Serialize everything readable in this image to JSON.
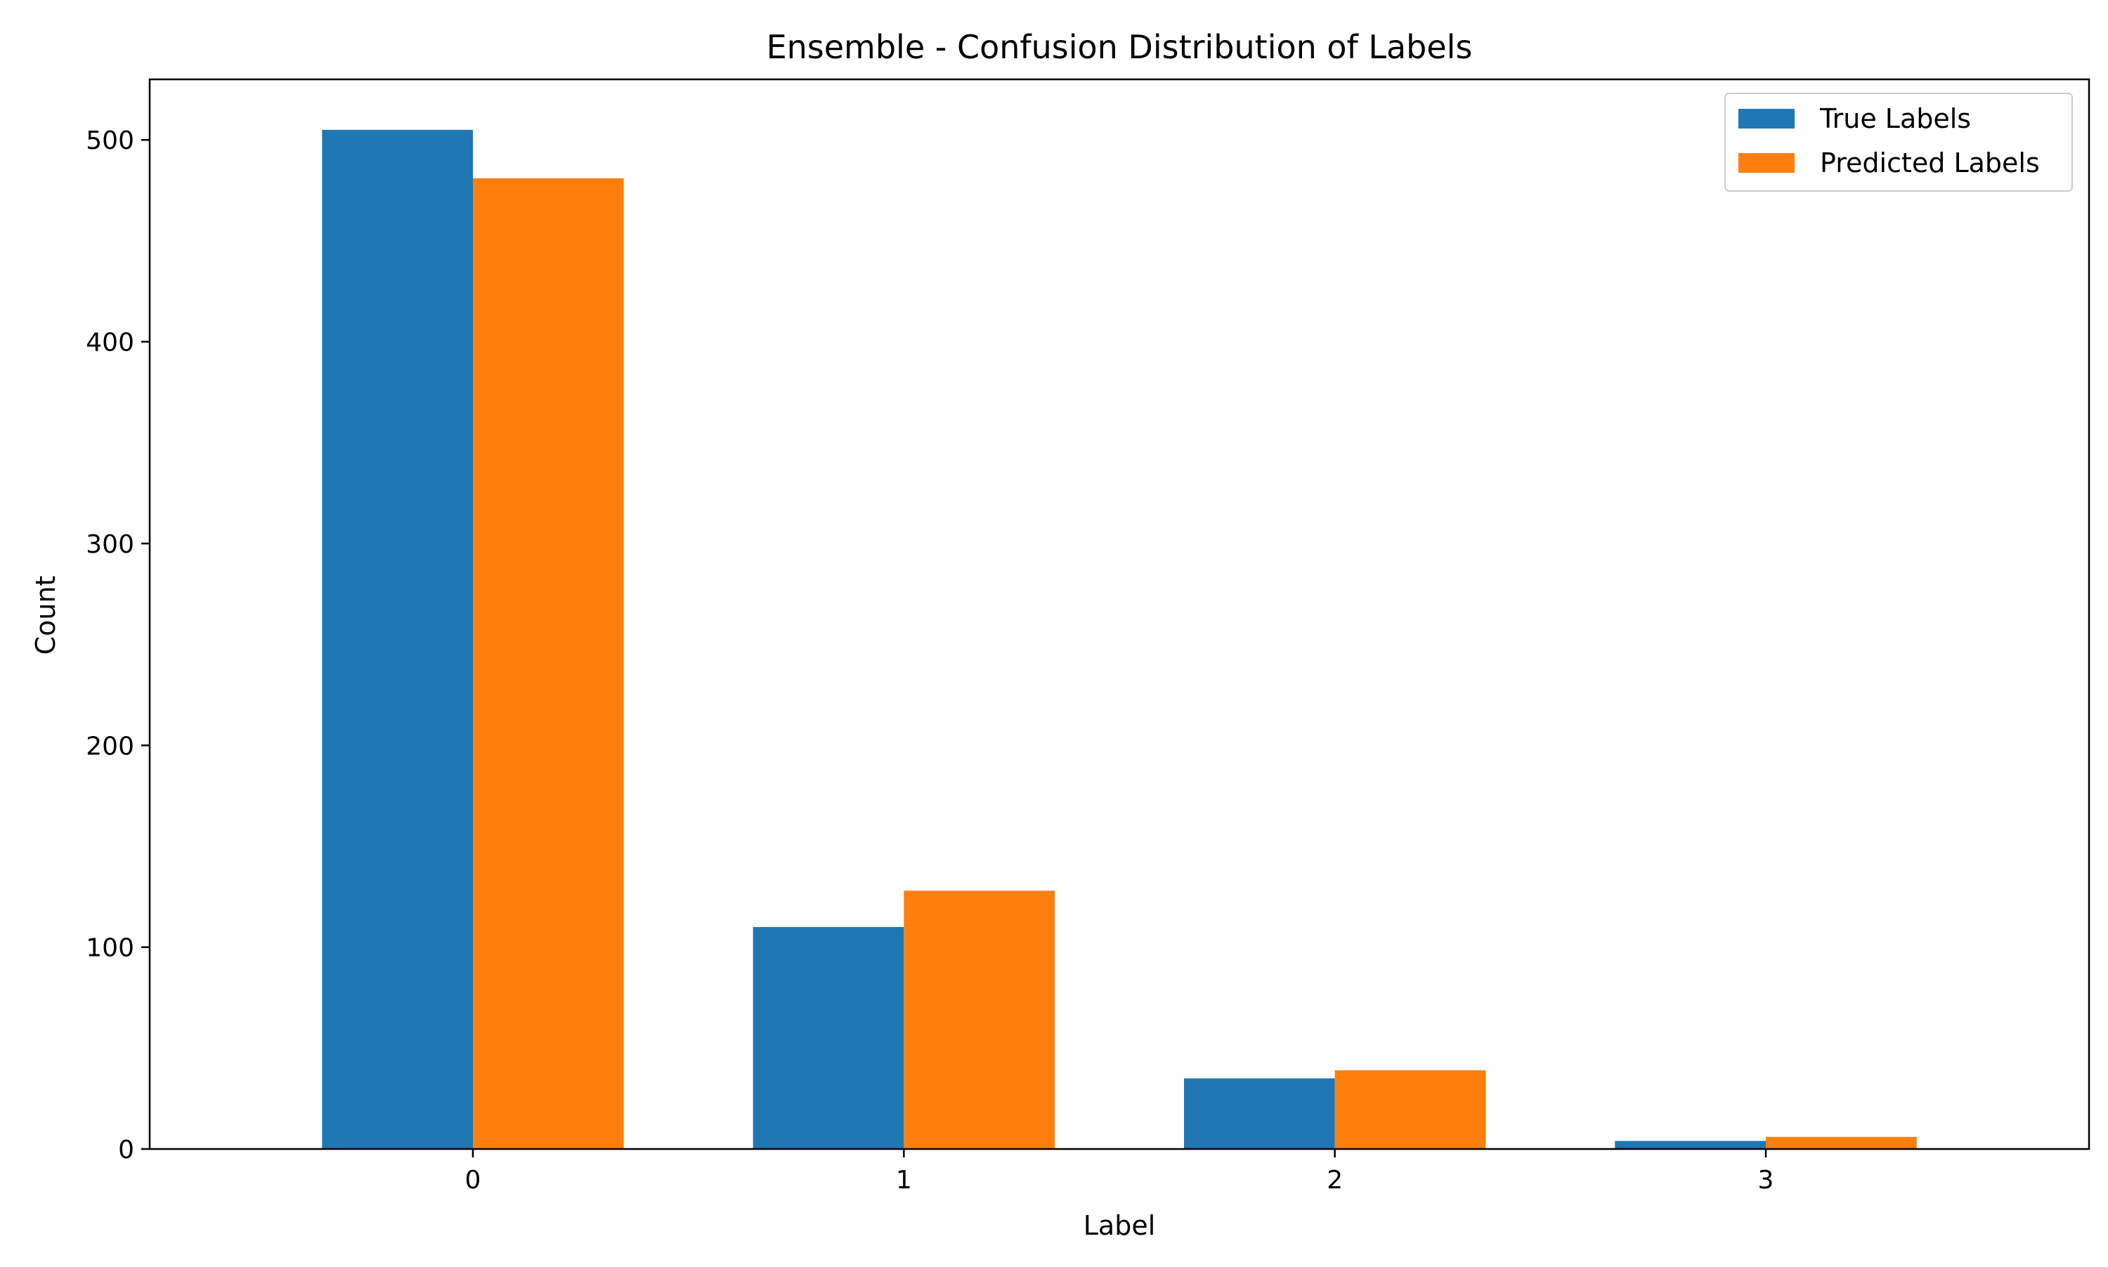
{
  "chart_data": {
    "type": "bar",
    "title": "Ensemble - Confusion Distribution of Labels",
    "xlabel": "Label",
    "ylabel": "Count",
    "categories": [
      "0",
      "1",
      "2",
      "3"
    ],
    "series": [
      {
        "name": "True Labels",
        "color": "#1f77b4",
        "values": [
          505,
          110,
          35,
          4
        ]
      },
      {
        "name": "Predicted Labels",
        "color": "#ff7f0e",
        "values": [
          481,
          128,
          39,
          6
        ]
      }
    ],
    "ylim": [
      0,
      530
    ],
    "yticks": [
      0,
      100,
      200,
      300,
      400,
      500
    ],
    "grid": false,
    "legend": "top-right"
  }
}
